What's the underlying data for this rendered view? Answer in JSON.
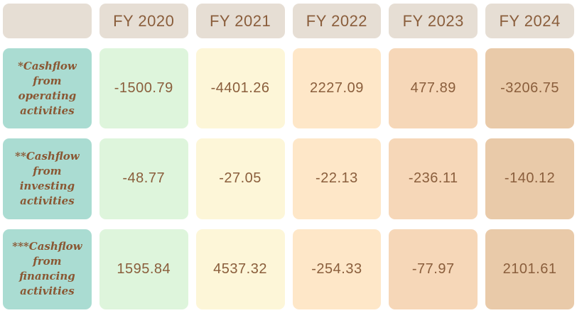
{
  "colors": {
    "background": "#ffffff",
    "header_bg": "#e6ded4",
    "label_bg": "#aadcd2",
    "columns": [
      "#def5dc",
      "#fdf6d8",
      "#fee7c8",
      "#f6d7b8",
      "#e9caa9"
    ],
    "header_text": "#8a5e3c",
    "value_text": "#8a5e3c",
    "label_text": "#8a5733"
  },
  "table": {
    "headers": [
      "FY 2020",
      "FY 2021",
      "FY 2022",
      "FY 2023",
      "FY 2024"
    ],
    "rows": [
      {
        "label": "*Cashflow from operating activities",
        "label_lines": [
          "*Cashflow",
          "from",
          "operating",
          "activities"
        ],
        "cells": [
          "-1500.79",
          "-4401.26",
          "2227.09",
          "477.89",
          "-3206.75"
        ]
      },
      {
        "label": "**Cashflow from investing activities",
        "label_lines": [
          "**Cashflow",
          "from",
          "investing",
          "activities"
        ],
        "cells": [
          "-48.77",
          "-27.05",
          "-22.13",
          "-236.11",
          "-140.12"
        ]
      },
      {
        "label": "***Cashflow from financing activities",
        "label_lines": [
          "***Cashflow",
          "from",
          "financing",
          "activities"
        ],
        "cells": [
          "1595.84",
          "4537.32",
          "-254.33",
          "-77.97",
          "2101.61"
        ]
      }
    ]
  },
  "chart_data": {
    "type": "table",
    "categories": [
      "FY 2020",
      "FY 2021",
      "FY 2022",
      "FY 2023",
      "FY 2024"
    ],
    "series": [
      {
        "name": "*Cashflow from operating activities",
        "values": [
          -1500.79,
          -4401.26,
          2227.09,
          477.89,
          -3206.75
        ]
      },
      {
        "name": "**Cashflow from investing activities",
        "values": [
          -48.77,
          -27.05,
          -22.13,
          -236.11,
          -140.12
        ]
      },
      {
        "name": "***Cashflow from financing activities",
        "values": [
          1595.84,
          4537.32,
          -254.33,
          -77.97,
          2101.61
        ]
      }
    ],
    "column_colors": [
      "#def5dc",
      "#fdf6d8",
      "#fee7c8",
      "#f6d7b8",
      "#e9caa9"
    ],
    "legend_position": "none",
    "grid": false
  }
}
